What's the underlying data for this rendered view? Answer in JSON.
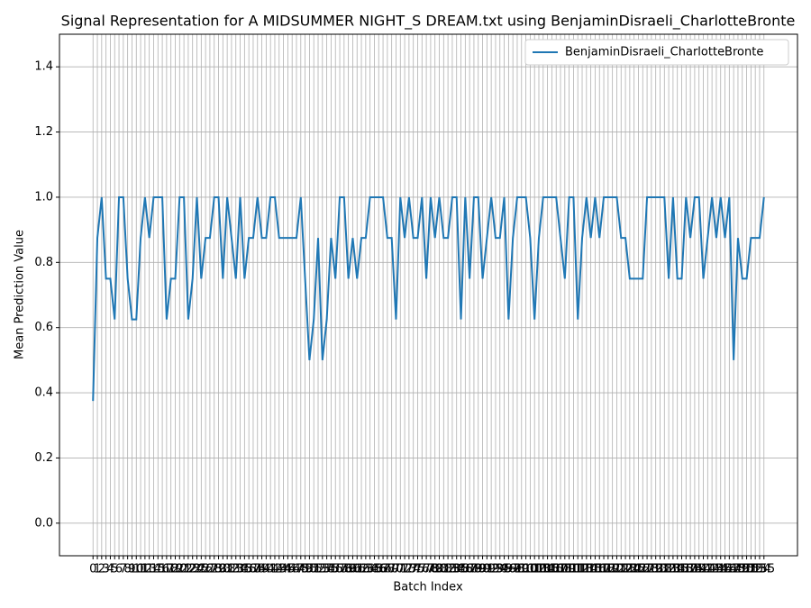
{
  "chart_data": {
    "type": "line",
    "title": "Signal Representation for A MIDSUMMER NIGHT_S DREAM.txt using BenjaminDisraeli_CharlotteBronte",
    "x_label": "Batch Index",
    "y_label": "Mean Prediction Value",
    "x": [
      0,
      1,
      2,
      3,
      4,
      5,
      6,
      7,
      8,
      9,
      10,
      11,
      12,
      13,
      14,
      15,
      16,
      17,
      18,
      19,
      20,
      21,
      22,
      23,
      24,
      25,
      26,
      27,
      28,
      29,
      30,
      31,
      32,
      33,
      34,
      35,
      36,
      37,
      38,
      39,
      40,
      41,
      42,
      43,
      44,
      45,
      46,
      47,
      48,
      49,
      50,
      51,
      52,
      53,
      54,
      55,
      56,
      57,
      58,
      59,
      60,
      61,
      62,
      63,
      64,
      65,
      66,
      67,
      68,
      69,
      70,
      71,
      72,
      73,
      74,
      75,
      76,
      77,
      78,
      79,
      80,
      81,
      82,
      83,
      84,
      85,
      86,
      87,
      88,
      89,
      90,
      91,
      92,
      93,
      94,
      95,
      96,
      97,
      98,
      99,
      100,
      101,
      102,
      103,
      104,
      105,
      106,
      107,
      108,
      109,
      110,
      111,
      112,
      113,
      114,
      115,
      116,
      117,
      118,
      119,
      120,
      121,
      122,
      123,
      124,
      125,
      126,
      127,
      128,
      129,
      130,
      131,
      132,
      133,
      134,
      135,
      136,
      137,
      138,
      139,
      140,
      141,
      142,
      143,
      144,
      145,
      146,
      147,
      148,
      149,
      150,
      151,
      152,
      153,
      154,
      155
    ],
    "series": [
      {
        "name": "BenjaminDisraeli_CharlotteBronte",
        "color": "#1f77b4",
        "values": [
          0.375,
          0.875,
          1.0,
          0.75,
          0.75,
          0.625,
          1.0,
          1.0,
          0.75,
          0.625,
          0.625,
          0.875,
          1.0,
          0.875,
          1.0,
          1.0,
          1.0,
          0.625,
          0.75,
          0.75,
          1.0,
          1.0,
          0.625,
          0.75,
          1.0,
          0.75,
          0.875,
          0.875,
          1.0,
          1.0,
          0.75,
          1.0,
          0.875,
          0.75,
          1.0,
          0.75,
          0.875,
          0.875,
          1.0,
          0.875,
          0.875,
          1.0,
          1.0,
          0.875,
          0.875,
          0.875,
          0.875,
          0.875,
          1.0,
          0.75,
          0.5,
          0.625,
          0.875,
          0.5,
          0.625,
          0.875,
          0.75,
          1.0,
          1.0,
          0.75,
          0.875,
          0.75,
          0.875,
          0.875,
          1.0,
          1.0,
          1.0,
          1.0,
          0.875,
          0.875,
          0.625,
          1.0,
          0.875,
          1.0,
          0.875,
          0.875,
          1.0,
          0.75,
          1.0,
          0.875,
          1.0,
          0.875,
          0.875,
          1.0,
          1.0,
          0.625,
          1.0,
          0.75,
          1.0,
          1.0,
          0.75,
          0.875,
          1.0,
          0.875,
          0.875,
          1.0,
          0.625,
          0.875,
          1.0,
          1.0,
          1.0,
          0.875,
          0.625,
          0.875,
          1.0,
          1.0,
          1.0,
          1.0,
          0.875,
          0.75,
          1.0,
          1.0,
          0.625,
          0.875,
          1.0,
          0.875,
          1.0,
          0.875,
          1.0,
          1.0,
          1.0,
          1.0,
          0.875,
          0.875,
          0.75,
          0.75,
          0.75,
          0.75,
          1.0,
          1.0,
          1.0,
          1.0,
          1.0,
          0.75,
          1.0,
          0.75,
          0.75,
          1.0,
          0.875,
          1.0,
          1.0,
          0.75,
          0.875,
          1.0,
          0.875,
          1.0,
          0.875,
          1.0,
          0.5,
          0.875,
          0.75,
          0.75,
          0.875,
          0.875,
          0.875,
          1.0
        ]
      }
    ],
    "xlim": [
      -7.75,
      162.75
    ],
    "xticks": [
      0,
      1,
      2,
      3,
      4,
      5,
      6,
      7,
      8,
      9,
      10,
      11,
      12,
      13,
      14,
      15,
      16,
      17,
      18,
      19,
      20,
      21,
      22,
      23,
      24,
      25,
      26,
      27,
      28,
      29,
      30,
      31,
      32,
      33,
      34,
      35,
      36,
      37,
      38,
      39,
      40,
      41,
      42,
      43,
      44,
      45,
      46,
      47,
      48,
      49,
      50,
      51,
      52,
      53,
      54,
      55,
      56,
      57,
      58,
      59,
      60,
      61,
      62,
      63,
      64,
      65,
      66,
      67,
      68,
      69,
      70,
      71,
      72,
      73,
      74,
      75,
      76,
      77,
      78,
      79,
      80,
      81,
      82,
      83,
      84,
      85,
      86,
      87,
      88,
      89,
      90,
      91,
      92,
      93,
      94,
      95,
      96,
      97,
      98,
      99,
      100,
      101,
      102,
      103,
      104,
      105,
      106,
      107,
      108,
      109,
      110,
      111,
      112,
      113,
      114,
      115,
      116,
      117,
      118,
      119,
      120,
      121,
      122,
      123,
      124,
      125,
      126,
      127,
      128,
      129,
      130,
      131,
      132,
      133,
      134,
      135,
      136,
      137,
      138,
      139,
      140,
      141,
      142,
      143,
      144,
      145,
      146,
      147,
      148,
      149,
      150,
      151,
      152,
      153,
      154,
      155
    ],
    "ylim": [
      -0.1,
      1.5
    ],
    "yticks": [
      {
        "value": 0,
        "label": "0.0"
      },
      0.2,
      0.4,
      0.6,
      0.8,
      {
        "value": 1,
        "label": "1.0"
      },
      1.2,
      1.4
    ],
    "grid": true,
    "legend": "upper right"
  }
}
